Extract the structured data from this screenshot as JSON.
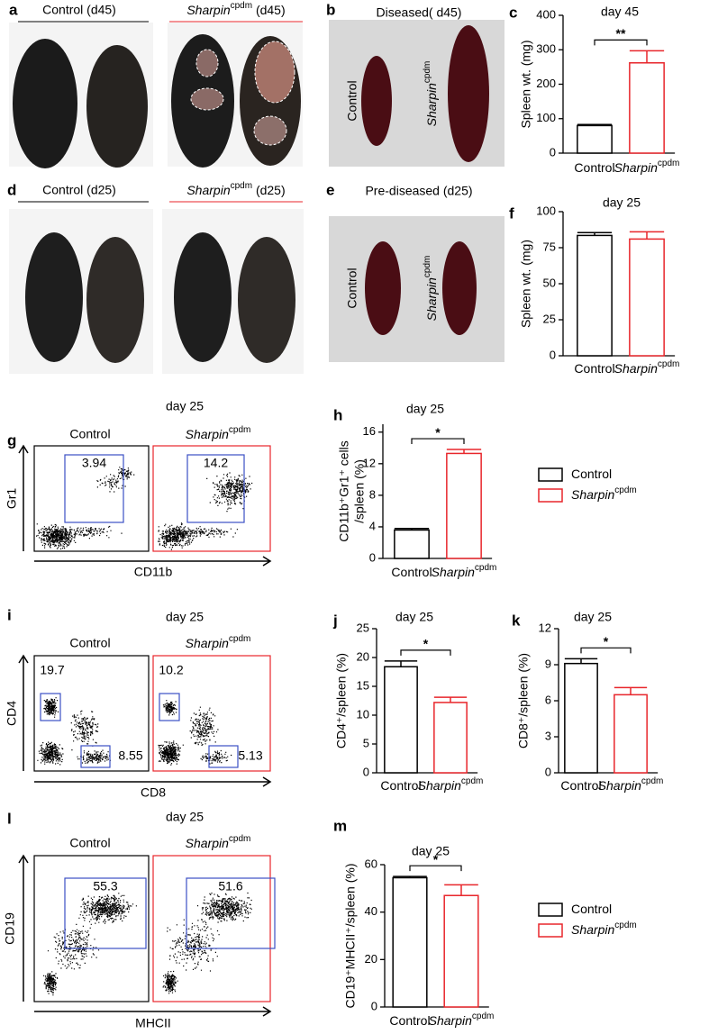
{
  "letters": [
    "a",
    "b",
    "c",
    "d",
    "e",
    "f",
    "g",
    "h",
    "i",
    "j",
    "k",
    "l",
    "m"
  ],
  "photos": [
    {
      "control_header": "Control (d45)",
      "mutant_name": "Sharpin",
      "mutant_sup": "cpdm",
      "mutant_suffix": " (d45)"
    },
    {
      "control_header": "Control (d25)",
      "mutant_name": "Sharpin",
      "mutant_sup": "cpdm",
      "mutant_suffix": " (d25)"
    }
  ],
  "spleens": [
    {
      "title": "Diseased( d45)",
      "control_label": "Control",
      "mutant_name": "Sharpin",
      "mutant_sup": "cpdm"
    },
    {
      "title": "Pre-diseased (d25)",
      "control_label": "Control",
      "mutant_name": "Sharpin",
      "mutant_sup": "cpdm"
    }
  ],
  "flow": [
    {
      "title": "day 25",
      "control": "Control",
      "mutant_name": "Sharpin",
      "mutant_sup": "cpdm",
      "ylabel": "Gr1",
      "xlabel": "CD11b",
      "gates": [
        [
          3.94
        ],
        [
          14.2
        ]
      ]
    },
    {
      "title": "day 25",
      "control": "Control",
      "mutant_name": "Sharpin",
      "mutant_sup": "cpdm",
      "ylabel": "CD4",
      "xlabel": "CD8",
      "gates": [
        [
          19.7,
          8.55
        ],
        [
          10.2,
          5.13
        ]
      ]
    },
    {
      "title": "day 25",
      "control": "Control",
      "mutant_name": "Sharpin",
      "mutant_sup": "cpdm",
      "ylabel": "CD19",
      "xlabel": "MHCII",
      "gates": [
        [
          55.3
        ],
        [
          51.6
        ]
      ]
    }
  ],
  "legends": [
    {
      "items": [
        {
          "name": "Control",
          "sup": null,
          "color": "#000000"
        },
        {
          "name": "Sharpin",
          "sup": "cpdm",
          "color": "#e8262b"
        }
      ]
    },
    {
      "items": [
        {
          "name": "Control",
          "sup": null,
          "color": "#000000"
        },
        {
          "name": "Sharpin",
          "sup": "cpdm",
          "color": "#e8262b"
        }
      ]
    }
  ],
  "chart_data": [
    {
      "type": "bar",
      "title": "day 45",
      "ylabel": [
        "Spleen wt. (mg)"
      ],
      "categories": [
        "Control",
        "Sharpin"
      ],
      "category_superscripts": [
        null,
        "cpdm"
      ],
      "values": [
        80,
        262
      ],
      "errors": [
        3,
        35
      ],
      "colors": [
        "#000000",
        "#e8262b"
      ],
      "ylim": [
        0,
        400
      ],
      "yticks": [
        0,
        100,
        200,
        300,
        400
      ],
      "significance": "**"
    },
    {
      "type": "bar",
      "title": "day 25",
      "ylabel": [
        "Spleen wt. (mg)"
      ],
      "categories": [
        "Control",
        "Sharpin"
      ],
      "category_superscripts": [
        null,
        "cpdm"
      ],
      "values": [
        83.5,
        81
      ],
      "errors": [
        2,
        5
      ],
      "colors": [
        "#000000",
        "#e8262b"
      ],
      "ylim": [
        0,
        100
      ],
      "yticks": [
        0,
        25,
        50,
        75,
        100
      ]
    },
    {
      "type": "bar",
      "title": "day 25",
      "ylabel": [
        "CD11b⁺Gr1⁺ cells",
        "/spleen (%)"
      ],
      "categories": [
        "Control",
        "Sharpin"
      ],
      "category_superscripts": [
        null,
        "cpdm"
      ],
      "values": [
        3.6,
        13.3
      ],
      "errors": [
        0.2,
        0.5
      ],
      "colors": [
        "#000000",
        "#e8262b"
      ],
      "ylim": [
        0,
        17
      ],
      "yticks": [
        0,
        4,
        8,
        12,
        16
      ],
      "significance": "*"
    },
    {
      "type": "bar",
      "title": "day 25",
      "ylabel": [
        "CD4⁺/spleen (%)"
      ],
      "categories": [
        "Control",
        "Sharpin"
      ],
      "category_superscripts": [
        null,
        "cpdm"
      ],
      "values": [
        18.4,
        12.2
      ],
      "errors": [
        1.0,
        0.9
      ],
      "colors": [
        "#000000",
        "#e8262b"
      ],
      "ylim": [
        0,
        25
      ],
      "yticks": [
        0,
        5,
        10,
        15,
        20,
        25
      ],
      "significance": "*"
    },
    {
      "type": "bar",
      "title": "day 25",
      "ylabel": [
        "CD8⁺/spleen (%)"
      ],
      "categories": [
        "Control",
        "Sharpin"
      ],
      "category_superscripts": [
        null,
        "cpdm"
      ],
      "values": [
        9.1,
        6.5
      ],
      "errors": [
        0.4,
        0.6
      ],
      "colors": [
        "#000000",
        "#e8262b"
      ],
      "ylim": [
        0,
        12
      ],
      "yticks": [
        0,
        3,
        6,
        9,
        12
      ],
      "significance": "*"
    },
    {
      "type": "bar",
      "title": "day 25",
      "ylabel": [
        "CD19⁺MHCII⁺/spleen (%)"
      ],
      "categories": [
        "Control",
        "Sharpin"
      ],
      "category_superscripts": [
        null,
        "cpdm"
      ],
      "values": [
        54.5,
        47
      ],
      "errors": [
        0.5,
        4.5
      ],
      "colors": [
        "#000000",
        "#e8262b"
      ],
      "ylim": [
        0,
        60
      ],
      "yticks": [
        0,
        20,
        40,
        60
      ],
      "significance": "*"
    }
  ]
}
